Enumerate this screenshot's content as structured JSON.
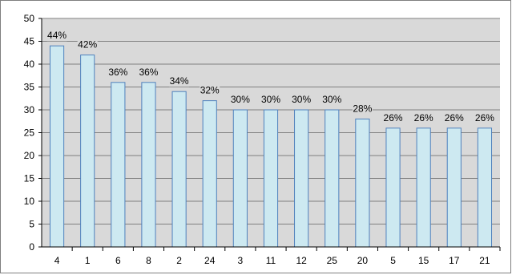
{
  "chart_data": {
    "type": "bar",
    "categories": [
      "4",
      "1",
      "6",
      "8",
      "2",
      "24",
      "3",
      "11",
      "12",
      "25",
      "20",
      "5",
      "15",
      "17",
      "21"
    ],
    "values": [
      44,
      42,
      36,
      36,
      34,
      32,
      30,
      30,
      30,
      30,
      28,
      26,
      26,
      26,
      26
    ],
    "data_labels": [
      "44%",
      "42%",
      "36%",
      "36%",
      "34%",
      "32%",
      "30%",
      "30%",
      "30%",
      "30%",
      "28%",
      "26%",
      "26%",
      "26%",
      "26%"
    ],
    "yticks": [
      "0",
      "5",
      "10",
      "15",
      "20",
      "25",
      "30",
      "35",
      "40",
      "45",
      "50"
    ],
    "ylim": [
      0,
      50
    ],
    "title": "",
    "xlabel": "",
    "ylabel": "",
    "grid": true,
    "legend": "none",
    "colors": {
      "bar_fill": "#cde9f1",
      "bar_stroke": "#4f81bd",
      "plot_background": "#d9d9d9",
      "gridline": "#808080",
      "axis": "#000000"
    }
  }
}
